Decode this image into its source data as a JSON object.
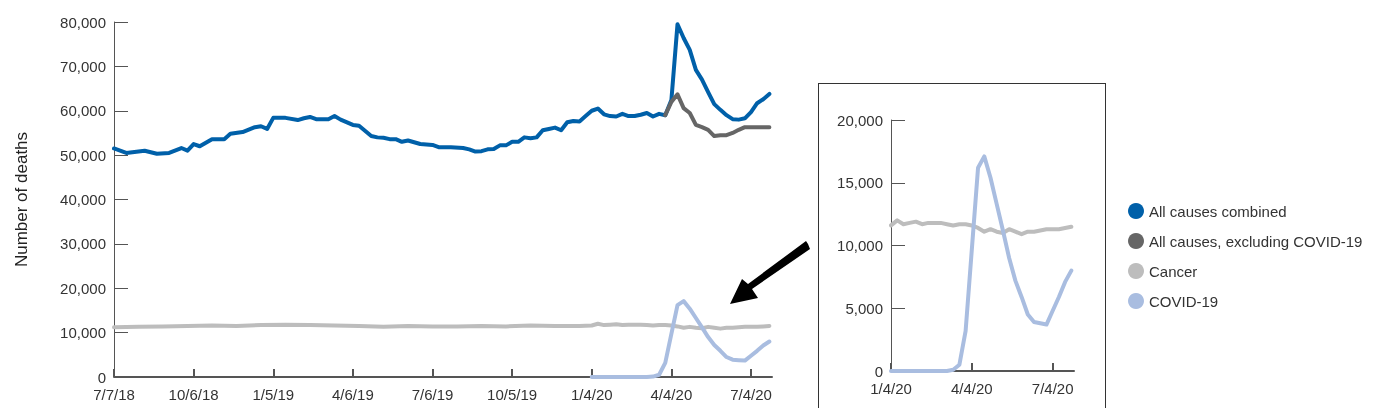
{
  "chart_data": [
    {
      "type": "line",
      "ylabel": "Number of deaths",
      "legend": "right",
      "grid": false,
      "marker": "none",
      "line_style": "solid",
      "xlim": [
        "2018-07-07",
        "2020-07-28"
      ],
      "xticks": [
        {
          "value": "2018-07-07",
          "label": "7/7/18"
        },
        {
          "value": "2018-10-06",
          "label": "10/6/18"
        },
        {
          "value": "2019-01-05",
          "label": "1/5/19"
        },
        {
          "value": "2019-04-06",
          "label": "4/6/19"
        },
        {
          "value": "2019-07-06",
          "label": "7/6/19"
        },
        {
          "value": "2019-10-05",
          "label": "10/5/19"
        },
        {
          "value": "2020-01-04",
          "label": "1/4/20"
        },
        {
          "value": "2020-04-04",
          "label": "4/4/20"
        },
        {
          "value": "2020-07-04",
          "label": "7/4/20"
        }
      ],
      "ylim": [
        0,
        80000
      ],
      "yticks": [
        0,
        {
          "value": 10000,
          "label": "10,000"
        },
        {
          "value": 20000,
          "label": "20,000"
        },
        {
          "value": 30000,
          "label": "30,000"
        },
        {
          "value": 40000,
          "label": "40,000"
        },
        {
          "value": 50000,
          "label": "50,000"
        },
        {
          "value": 60000,
          "label": "60,000"
        },
        {
          "value": 70000,
          "label": "70,000"
        },
        {
          "value": 80000,
          "label": "80,000"
        }
      ],
      "series": [
        {
          "name": "All causes combined",
          "color": "#0060a9",
          "x": [
            "2018-07-07",
            "2018-07-21",
            "2018-08-11",
            "2018-08-25",
            "2018-09-08",
            "2018-09-22",
            "2018-09-29",
            "2018-10-06",
            "2018-10-13",
            "2018-10-27",
            "2018-11-10",
            "2018-11-17",
            "2018-12-01",
            "2018-12-15",
            "2018-12-22",
            "2018-12-29",
            "2019-01-05",
            "2019-01-19",
            "2019-02-02",
            "2019-02-09",
            "2019-02-16",
            "2019-02-23",
            "2019-03-09",
            "2019-03-16",
            "2019-03-23",
            "2019-04-06",
            "2019-04-13",
            "2019-04-27",
            "2019-05-04",
            "2019-05-11",
            "2019-05-18",
            "2019-05-25",
            "2019-06-01",
            "2019-06-08",
            "2019-06-22",
            "2019-07-06",
            "2019-07-13",
            "2019-07-27",
            "2019-08-10",
            "2019-08-17",
            "2019-08-24",
            "2019-08-31",
            "2019-09-07",
            "2019-09-14",
            "2019-09-21",
            "2019-09-28",
            "2019-10-05",
            "2019-10-12",
            "2019-10-19",
            "2019-10-26",
            "2019-11-02",
            "2019-11-09",
            "2019-11-16",
            "2019-11-23",
            "2019-11-30",
            "2019-12-07",
            "2019-12-14",
            "2019-12-21",
            "2019-12-28",
            "2020-01-04",
            "2020-01-11",
            "2020-01-18",
            "2020-01-25",
            "2020-02-01",
            "2020-02-08",
            "2020-02-15",
            "2020-02-22",
            "2020-02-29",
            "2020-03-07",
            "2020-03-14",
            "2020-03-21",
            "2020-03-28",
            "2020-04-04",
            "2020-04-11",
            "2020-04-18",
            "2020-04-25",
            "2020-05-02",
            "2020-05-09",
            "2020-05-16",
            "2020-05-23",
            "2020-05-30",
            "2020-06-06",
            "2020-06-13",
            "2020-06-20",
            "2020-06-27",
            "2020-07-04",
            "2020-07-11",
            "2020-07-18",
            "2020-07-25"
          ],
          "values": [
            51500,
            50500,
            51000,
            50300,
            50500,
            51600,
            51000,
            52500,
            52000,
            53600,
            53600,
            54800,
            55200,
            56300,
            56500,
            55900,
            58400,
            58400,
            57900,
            58300,
            58600,
            58100,
            58100,
            58800,
            58000,
            56800,
            56600,
            54300,
            54000,
            53900,
            53600,
            53600,
            53000,
            53300,
            52500,
            52300,
            51800,
            51800,
            51600,
            51300,
            50800,
            50900,
            51300,
            51400,
            52200,
            52200,
            53000,
            53000,
            54000,
            53800,
            54000,
            55600,
            55900,
            56200,
            55600,
            57400,
            57700,
            57600,
            58800,
            60000,
            60500,
            59200,
            58800,
            58700,
            59300,
            58800,
            58800,
            59100,
            59500,
            58700,
            59300,
            59000,
            62400,
            79500,
            76400,
            73700,
            69200,
            67000,
            64200,
            61500,
            60200,
            59000,
            58100,
            58000,
            58300,
            59700,
            61700,
            62600,
            63800
          ]
        },
        {
          "name": "All causes, excluding COVID-19",
          "color": "#666666",
          "x": [
            "2020-03-28",
            "2020-04-04",
            "2020-04-11",
            "2020-04-18",
            "2020-04-25",
            "2020-05-02",
            "2020-05-09",
            "2020-05-16",
            "2020-05-23",
            "2020-05-30",
            "2020-06-06",
            "2020-06-13",
            "2020-06-20",
            "2020-06-27",
            "2020-07-04",
            "2020-07-11",
            "2020-07-18",
            "2020-07-25"
          ],
          "values": [
            59000,
            62000,
            63700,
            60600,
            59500,
            56800,
            56300,
            55700,
            54300,
            54500,
            54500,
            55000,
            55700,
            56300,
            56300,
            56300,
            56300,
            56300
          ]
        },
        {
          "name": "Cancer",
          "color": "#bdbdbd",
          "x": [
            "2018-07-07",
            "2018-08-04",
            "2018-09-01",
            "2018-09-29",
            "2018-10-27",
            "2018-11-24",
            "2018-12-22",
            "2019-01-19",
            "2019-02-16",
            "2019-03-16",
            "2019-04-13",
            "2019-05-11",
            "2019-06-08",
            "2019-07-06",
            "2019-08-03",
            "2019-08-31",
            "2019-09-28",
            "2019-10-26",
            "2019-11-23",
            "2019-12-21",
            "2020-01-04",
            "2020-01-11",
            "2020-01-18",
            "2020-01-25",
            "2020-02-01",
            "2020-02-08",
            "2020-02-15",
            "2020-02-22",
            "2020-02-29",
            "2020-03-07",
            "2020-03-14",
            "2020-03-21",
            "2020-03-28",
            "2020-04-04",
            "2020-04-11",
            "2020-04-18",
            "2020-04-25",
            "2020-05-02",
            "2020-05-09",
            "2020-05-16",
            "2020-05-23",
            "2020-05-30",
            "2020-06-06",
            "2020-06-13",
            "2020-06-20",
            "2020-06-27",
            "2020-07-04",
            "2020-07-11",
            "2020-07-18",
            "2020-07-25"
          ],
          "values": [
            11200,
            11300,
            11400,
            11500,
            11600,
            11500,
            11700,
            11800,
            11700,
            11600,
            11500,
            11300,
            11500,
            11400,
            11400,
            11500,
            11400,
            11600,
            11500,
            11500,
            11600,
            12000,
            11700,
            11800,
            11900,
            11700,
            11800,
            11800,
            11800,
            11700,
            11600,
            11700,
            11700,
            11600,
            11400,
            11100,
            11300,
            11100,
            11000,
            11300,
            11100,
            10900,
            11100,
            11100,
            11200,
            11300,
            11300,
            11300,
            11400,
            11500
          ]
        },
        {
          "name": "COVID-19",
          "color": "#a9bde0",
          "x": [
            "2020-01-04",
            "2020-03-07",
            "2020-03-14",
            "2020-03-21",
            "2020-03-28",
            "2020-04-04",
            "2020-04-11",
            "2020-04-18",
            "2020-04-25",
            "2020-05-02",
            "2020-05-09",
            "2020-05-16",
            "2020-05-23",
            "2020-05-30",
            "2020-06-06",
            "2020-06-13",
            "2020-06-20",
            "2020-06-27",
            "2020-07-04",
            "2020-07-11",
            "2020-07-18",
            "2020-07-25"
          ],
          "values": [
            0,
            0,
            100,
            500,
            3200,
            9700,
            16200,
            17100,
            15400,
            13300,
            11200,
            9000,
            7200,
            5900,
            4500,
            3900,
            3800,
            3700,
            4800,
            5900,
            7100,
            8000
          ]
        }
      ]
    },
    {
      "type": "line",
      "grid": false,
      "marker": "none",
      "line_style": "solid",
      "xlim": [
        "2020-01-04",
        "2020-07-28"
      ],
      "xticks": [
        {
          "value": "2020-01-04",
          "label": "1/4/20"
        },
        {
          "value": "2020-04-04",
          "label": "4/4/20"
        },
        {
          "value": "2020-07-04",
          "label": "7/4/20"
        }
      ],
      "ylim": [
        0,
        20000
      ],
      "yticks": [
        0,
        {
          "value": 5000,
          "label": "5,000"
        },
        {
          "value": 10000,
          "label": "10,000"
        },
        {
          "value": 15000,
          "label": "15,000"
        },
        {
          "value": 20000,
          "label": "20,000"
        }
      ],
      "series": [
        {
          "color": "#bdbdbd",
          "x": [
            "2020-01-04",
            "2020-01-11",
            "2020-01-18",
            "2020-01-25",
            "2020-02-01",
            "2020-02-08",
            "2020-02-15",
            "2020-02-22",
            "2020-02-29",
            "2020-03-07",
            "2020-03-14",
            "2020-03-21",
            "2020-03-28",
            "2020-04-04",
            "2020-04-11",
            "2020-04-18",
            "2020-04-25",
            "2020-05-02",
            "2020-05-09",
            "2020-05-16",
            "2020-05-23",
            "2020-05-30",
            "2020-06-06",
            "2020-06-13",
            "2020-06-20",
            "2020-06-27",
            "2020-07-04",
            "2020-07-11",
            "2020-07-18",
            "2020-07-25"
          ],
          "values": [
            11600,
            12000,
            11700,
            11800,
            11900,
            11700,
            11800,
            11800,
            11800,
            11700,
            11600,
            11700,
            11700,
            11600,
            11400,
            11100,
            11300,
            11100,
            11000,
            11300,
            11100,
            10900,
            11100,
            11100,
            11200,
            11300,
            11300,
            11300,
            11400,
            11500
          ]
        },
        {
          "color": "#a9bde0",
          "x": [
            "2020-01-04",
            "2020-03-07",
            "2020-03-14",
            "2020-03-21",
            "2020-03-28",
            "2020-04-04",
            "2020-04-11",
            "2020-04-18",
            "2020-04-25",
            "2020-05-02",
            "2020-05-09",
            "2020-05-16",
            "2020-05-23",
            "2020-05-30",
            "2020-06-06",
            "2020-06-13",
            "2020-06-20",
            "2020-06-27",
            "2020-07-04",
            "2020-07-11",
            "2020-07-18",
            "2020-07-25"
          ],
          "values": [
            0,
            0,
            100,
            500,
            3200,
            9700,
            16200,
            17100,
            15400,
            13300,
            11200,
            9000,
            7200,
            5900,
            4500,
            3900,
            3800,
            3700,
            4800,
            5900,
            7100,
            8000
          ]
        }
      ]
    }
  ]
}
